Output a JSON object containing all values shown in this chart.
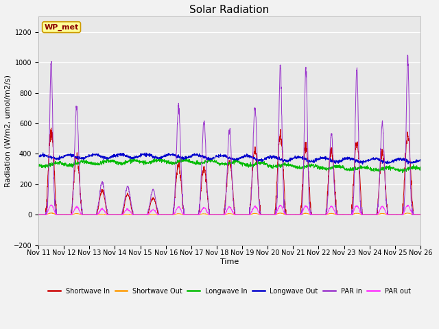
{
  "title": "Solar Radiation",
  "xlabel": "Time",
  "ylabel": "Radiation (W/m2, umol/m2/s)",
  "ylim": [
    -200,
    1300
  ],
  "yticks": [
    -200,
    0,
    200,
    400,
    600,
    800,
    1000,
    1200
  ],
  "n_days": 15,
  "pts_per_day": 144,
  "plot_bg_color": "#e8e8e8",
  "fig_bg_color": "#f2f2f2",
  "legend_labels": [
    "Shortwave In",
    "Shortwave Out",
    "Longwave In",
    "Longwave Out",
    "PAR in",
    "PAR out"
  ],
  "line_colors": [
    "#cc0000",
    "#ff9900",
    "#00bb00",
    "#0000cc",
    "#9933cc",
    "#ff33ff"
  ],
  "station_label": "WP_met",
  "station_box_color": "#ffff99",
  "station_box_edge": "#cc9900",
  "title_fontsize": 11,
  "axis_label_fontsize": 8,
  "tick_fontsize": 7,
  "figsize": [
    6.4,
    4.8
  ],
  "dpi": 100
}
